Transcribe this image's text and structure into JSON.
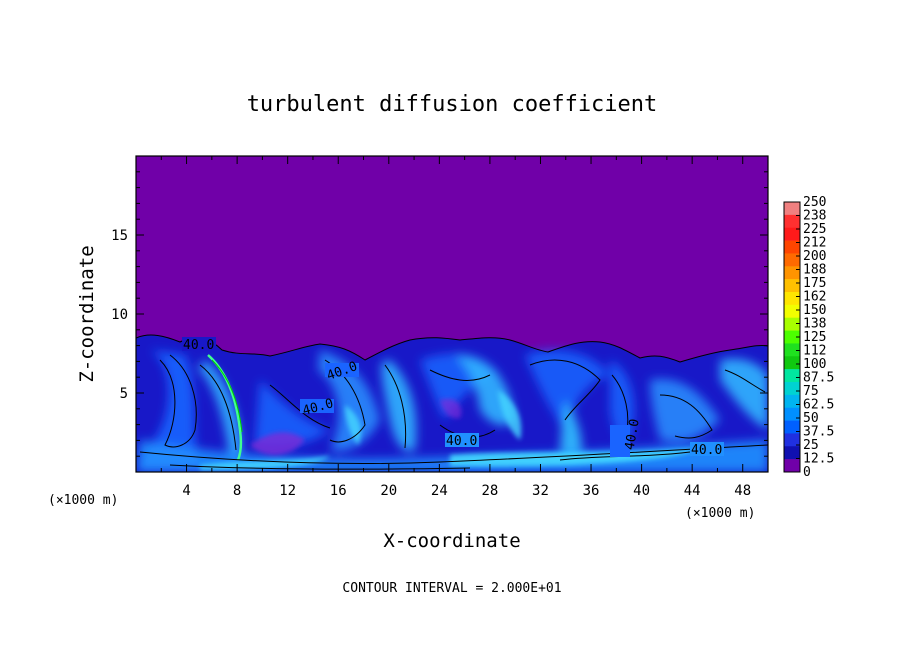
{
  "chart_data": {
    "type": "heatmap",
    "title": "turbulent diffusion coefficient",
    "xlabel": "X-coordinate",
    "ylabel": "Z-coordinate",
    "x_unit": "(×1000 m)",
    "xlim": [
      0,
      50
    ],
    "ylim": [
      0,
      20
    ],
    "x_ticks": [
      4,
      8,
      12,
      16,
      20,
      24,
      28,
      32,
      36,
      40,
      44,
      48
    ],
    "y_ticks": [
      5,
      10,
      15
    ],
    "colorbar": {
      "min": 0,
      "max": 250,
      "labels": [
        "250",
        "238",
        "225",
        "212",
        "200",
        "188",
        "175",
        "162",
        "150",
        "138",
        "125",
        "112",
        "100",
        "87.5",
        "75",
        "62.5",
        "50",
        "37.5",
        "25",
        "12.5",
        "0"
      ],
      "colors": [
        "#f08080",
        "#ff3030",
        "#ff1a1a",
        "#ff4500",
        "#ff6a00",
        "#ff9400",
        "#ffc000",
        "#ffe600",
        "#f2ff00",
        "#a8ff00",
        "#4cff00",
        "#1fe01f",
        "#10c810",
        "#00e6a0",
        "#00d2d2",
        "#00b4f0",
        "#0090ff",
        "#0060ff",
        "#2030e0",
        "#1010b0",
        "#7000a8"
      ]
    },
    "contour_interval": "CONTOUR INTERVAL = 2.000E+01",
    "contour_labels": [
      "40.0",
      "40.0",
      "40.0",
      "40.0",
      "40.0",
      "40.0"
    ],
    "turbulent_layer_top_z": 8.5
  }
}
